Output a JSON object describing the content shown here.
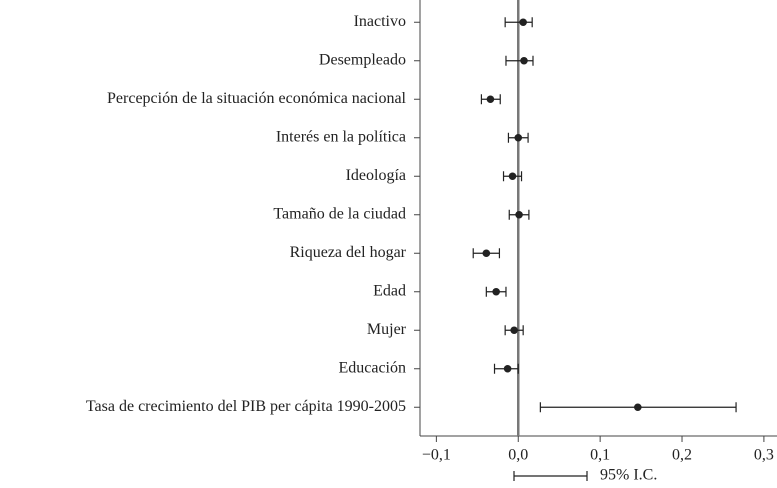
{
  "chart_data": {
    "type": "coefficient",
    "categories": [
      "Inactivo",
      "Desempleado",
      "Percepción de la situación económica nacional",
      "Interés en la política",
      "Ideología",
      "Tamaño de la ciudad",
      "Riqueza del hogar",
      "Edad",
      "Mujer",
      "Educación",
      "Tasa de crecimiento del PIB per cápita 1990-2005"
    ],
    "category_colors": [
      "#222",
      "#222",
      "#222",
      "#222",
      "#222",
      "#222",
      "#222",
      "#222",
      "#222",
      "#222",
      "#888"
    ],
    "values": [
      0.006,
      0.007,
      -0.034,
      0.0,
      -0.007,
      0.001,
      -0.039,
      -0.027,
      -0.005,
      -0.013,
      0.146
    ],
    "lower": [
      -0.016,
      -0.015,
      -0.045,
      -0.012,
      -0.018,
      -0.011,
      -0.055,
      -0.039,
      -0.016,
      -0.029,
      0.027
    ],
    "upper": [
      0.017,
      0.018,
      -0.022,
      0.012,
      0.004,
      0.013,
      -0.023,
      -0.015,
      0.006,
      0.0,
      0.266
    ],
    "color": "#222",
    "legend": "95% I.C.",
    "xlim": [
      -0.12,
      0.316
    ],
    "xticks": [
      {
        "value": -0.1,
        "label": "−0,1"
      },
      {
        "value": 0.0,
        "label": "0,0"
      },
      {
        "value": 0.1,
        "label": "0,1"
      },
      {
        "value": 0.2,
        "label": "0,2"
      },
      {
        "value": 0.3,
        "label": "0,3"
      }
    ],
    "reference_line": 0
  }
}
